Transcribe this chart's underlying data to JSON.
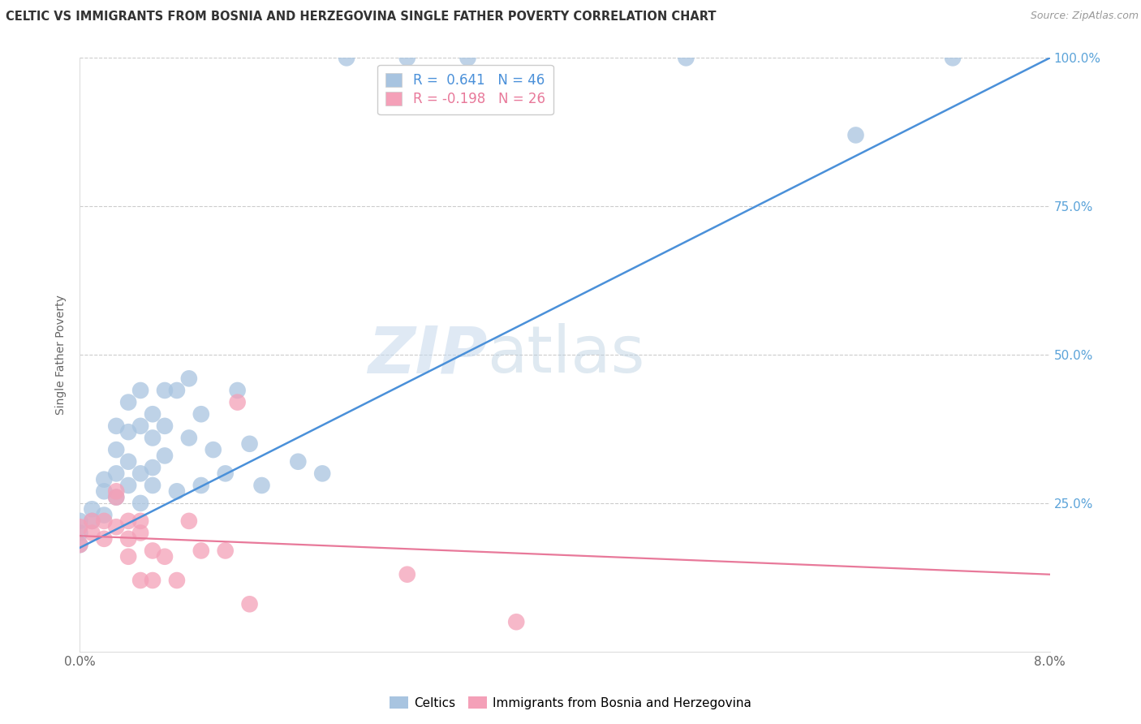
{
  "title": "CELTIC VS IMMIGRANTS FROM BOSNIA AND HERZEGOVINA SINGLE FATHER POVERTY CORRELATION CHART",
  "source": "Source: ZipAtlas.com",
  "ylabel": "Single Father Poverty",
  "legend_label_blue": "Celtics",
  "legend_label_pink": "Immigrants from Bosnia and Herzegovina",
  "R_blue": 0.641,
  "N_blue": 46,
  "R_pink": -0.198,
  "N_pink": 26,
  "blue_color": "#a8c4e0",
  "pink_color": "#f4a0b8",
  "blue_line_color": "#4a90d9",
  "pink_line_color": "#e8799a",
  "watermark_zip": "ZIP",
  "watermark_atlas": "atlas",
  "blue_scatter_x": [
    0.0,
    0.0,
    0.0,
    0.001,
    0.001,
    0.002,
    0.002,
    0.002,
    0.003,
    0.003,
    0.003,
    0.003,
    0.004,
    0.004,
    0.004,
    0.004,
    0.005,
    0.005,
    0.005,
    0.005,
    0.006,
    0.006,
    0.006,
    0.006,
    0.007,
    0.007,
    0.007,
    0.008,
    0.008,
    0.009,
    0.009,
    0.01,
    0.01,
    0.011,
    0.012,
    0.013,
    0.014,
    0.015,
    0.018,
    0.02,
    0.022,
    0.027,
    0.032,
    0.05,
    0.064,
    0.072
  ],
  "blue_scatter_y": [
    0.18,
    0.2,
    0.22,
    0.22,
    0.24,
    0.23,
    0.27,
    0.29,
    0.26,
    0.3,
    0.34,
    0.38,
    0.28,
    0.32,
    0.37,
    0.42,
    0.25,
    0.3,
    0.38,
    0.44,
    0.28,
    0.31,
    0.36,
    0.4,
    0.33,
    0.38,
    0.44,
    0.27,
    0.44,
    0.36,
    0.46,
    0.28,
    0.4,
    0.34,
    0.3,
    0.44,
    0.35,
    0.28,
    0.32,
    0.3,
    1.0,
    1.0,
    1.0,
    1.0,
    0.87,
    1.0
  ],
  "pink_scatter_x": [
    0.0,
    0.0,
    0.001,
    0.001,
    0.002,
    0.002,
    0.003,
    0.003,
    0.003,
    0.004,
    0.004,
    0.004,
    0.005,
    0.005,
    0.005,
    0.006,
    0.006,
    0.007,
    0.008,
    0.009,
    0.01,
    0.012,
    0.013,
    0.014,
    0.027,
    0.036
  ],
  "pink_scatter_y": [
    0.18,
    0.21,
    0.2,
    0.22,
    0.19,
    0.22,
    0.21,
    0.26,
    0.27,
    0.16,
    0.19,
    0.22,
    0.12,
    0.2,
    0.22,
    0.12,
    0.17,
    0.16,
    0.12,
    0.22,
    0.17,
    0.17,
    0.42,
    0.08,
    0.13,
    0.05
  ],
  "blue_line_x0": 0.0,
  "blue_line_x1": 0.08,
  "blue_line_y0": 0.175,
  "blue_line_y1": 1.0,
  "pink_line_x0": 0.0,
  "pink_line_x1": 0.08,
  "pink_line_y0": 0.195,
  "pink_line_y1": 0.13,
  "xmin": 0.0,
  "xmax": 0.08,
  "ymin": 0.0,
  "ymax": 1.0
}
